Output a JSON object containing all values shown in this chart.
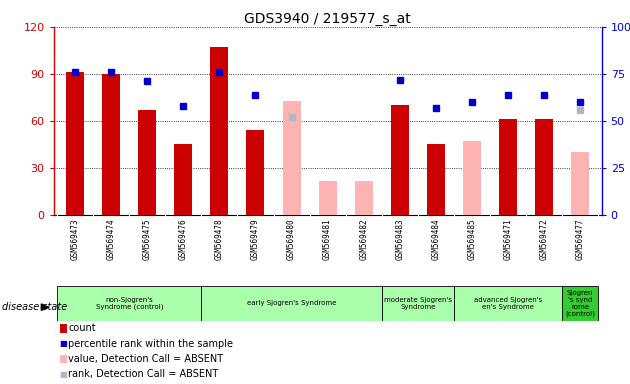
{
  "title": "GDS3940 / 219577_s_at",
  "samples": [
    "GSM569473",
    "GSM569474",
    "GSM569475",
    "GSM569476",
    "GSM569478",
    "GSM569479",
    "GSM569480",
    "GSM569481",
    "GSM569482",
    "GSM569483",
    "GSM569484",
    "GSM569485",
    "GSM569471",
    "GSM569472",
    "GSM569477"
  ],
  "count": [
    91,
    90,
    67,
    45,
    107,
    54,
    null,
    null,
    null,
    70,
    45,
    null,
    61,
    61,
    null
  ],
  "percentile_rank": [
    76,
    76,
    71,
    58,
    76,
    64,
    null,
    null,
    null,
    72,
    57,
    60,
    64,
    64,
    60
  ],
  "value_absent": [
    null,
    null,
    null,
    null,
    null,
    null,
    73,
    22,
    22,
    null,
    null,
    47,
    null,
    null,
    40
  ],
  "rank_absent": [
    null,
    null,
    null,
    null,
    null,
    null,
    52,
    null,
    null,
    null,
    null,
    null,
    null,
    null,
    56
  ],
  "groups": [
    {
      "label": "non-Sjogren's\nSyndrome (control)",
      "start": 0,
      "end": 4,
      "color": "#aaffaa"
    },
    {
      "label": "early Sjogren's Syndrome",
      "start": 4,
      "end": 9,
      "color": "#aaffaa"
    },
    {
      "label": "moderate Sjogren's\nSyndrome",
      "start": 9,
      "end": 11,
      "color": "#aaffaa"
    },
    {
      "label": "advanced Sjogren's\nen's Syndrome",
      "start": 11,
      "end": 14,
      "color": "#aaffaa"
    },
    {
      "label": "Sjogren\n's synd\nrome\n(control)",
      "start": 14,
      "end": 15,
      "color": "#33cc33"
    }
  ],
  "ylim_left": [
    0,
    120
  ],
  "ylim_right": [
    0,
    100
  ],
  "yticks_left": [
    0,
    30,
    60,
    90,
    120
  ],
  "yticks_right": [
    0,
    25,
    50,
    75,
    100
  ],
  "count_color": "#cc0000",
  "rank_color": "#0000cc",
  "absent_value_color": "#ffb3b3",
  "absent_rank_color": "#b3b3cc",
  "tick_bg_color": "#cccccc",
  "plot_bg_color": "#ffffff",
  "figure_bg": "#ffffff"
}
